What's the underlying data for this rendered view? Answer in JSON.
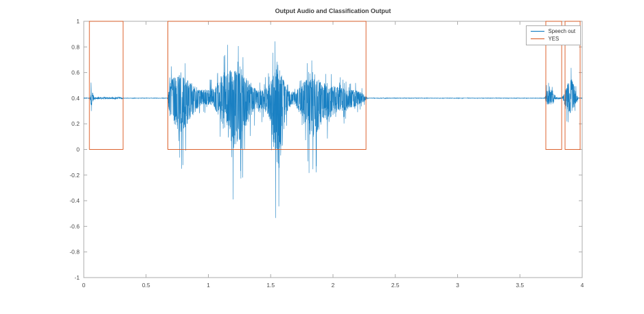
{
  "figure": {
    "background": "#ffffff"
  },
  "chart_data": {
    "type": "line",
    "title": "Output Audio and Classification Output",
    "xlabel": "",
    "ylabel": "",
    "xlim": [
      0,
      4
    ],
    "ylim": [
      -1,
      1
    ],
    "grid": false,
    "axis_color": "#ababab",
    "tick_label_color": "#4a4a4a",
    "xticks": [
      0,
      0.5,
      1,
      1.5,
      2,
      2.5,
      3,
      3.5,
      4
    ],
    "xtick_labels": [
      "0",
      "0.5",
      "1",
      "1.5",
      "2",
      "2.5",
      "3",
      "3.5",
      "4"
    ],
    "yticks": [
      -1,
      -0.8,
      -0.6,
      -0.4,
      -0.2,
      0,
      0.2,
      0.4,
      0.6,
      0.8,
      1
    ],
    "ytick_labels": [
      "-1",
      "-0.8",
      "-0.6",
      "-0.4",
      "-0.2",
      "0",
      "0.2",
      "0.4",
      "0.6",
      "0.8",
      "1"
    ],
    "legend": {
      "position": "northeast",
      "entries": [
        {
          "label": "Speech out",
          "color": "#0072BD"
        },
        {
          "label": "YES",
          "color": "#D95319"
        }
      ]
    },
    "series": [
      {
        "name": "Speech out",
        "type": "waveform",
        "color": "#0072BD",
        "baseline": 0.4,
        "envelope": [
          [
            0.0,
            0.004,
            0.004
          ],
          [
            0.05,
            0.004,
            0.004
          ],
          [
            0.06,
            0.15,
            0.17
          ],
          [
            0.07,
            0.1,
            0.09
          ],
          [
            0.082,
            0.02,
            0.02
          ],
          [
            0.1,
            0.012,
            0.012
          ],
          [
            0.3,
            0.012,
            0.012
          ],
          [
            0.315,
            0.003,
            0.003
          ],
          [
            0.67,
            0.003,
            0.003
          ],
          [
            0.69,
            0.22,
            0.3
          ],
          [
            0.72,
            0.34,
            0.45
          ],
          [
            0.76,
            0.37,
            0.62
          ],
          [
            0.8,
            0.33,
            0.58
          ],
          [
            0.85,
            0.27,
            0.4
          ],
          [
            0.9,
            0.18,
            0.22
          ],
          [
            0.94,
            0.13,
            0.11
          ],
          [
            0.99,
            0.14,
            0.12
          ],
          [
            1.04,
            0.17,
            0.15
          ],
          [
            1.09,
            0.32,
            0.35
          ],
          [
            1.14,
            0.43,
            0.6
          ],
          [
            1.2,
            0.44,
            0.88
          ],
          [
            1.25,
            0.41,
            0.8
          ],
          [
            1.3,
            0.33,
            0.55
          ],
          [
            1.345,
            0.2,
            0.3
          ],
          [
            1.39,
            0.13,
            0.18
          ],
          [
            1.44,
            0.14,
            0.22
          ],
          [
            1.49,
            0.22,
            0.35
          ],
          [
            1.53,
            0.45,
            0.9
          ],
          [
            1.56,
            0.54,
            1.3
          ],
          [
            1.59,
            0.4,
            0.95
          ],
          [
            1.62,
            0.18,
            0.3
          ],
          [
            1.66,
            0.1,
            0.12
          ],
          [
            1.7,
            0.11,
            0.13
          ],
          [
            1.74,
            0.2,
            0.3
          ],
          [
            1.78,
            0.28,
            0.45
          ],
          [
            1.83,
            0.31,
            0.7
          ],
          [
            1.88,
            0.3,
            0.6
          ],
          [
            1.93,
            0.24,
            0.35
          ],
          [
            1.97,
            0.21,
            0.4
          ],
          [
            2.01,
            0.19,
            0.28
          ],
          [
            2.06,
            0.17,
            0.24
          ],
          [
            2.11,
            0.15,
            0.2
          ],
          [
            2.16,
            0.13,
            0.16
          ],
          [
            2.21,
            0.11,
            0.12
          ],
          [
            2.25,
            0.06,
            0.06
          ],
          [
            2.28,
            0.003,
            0.003
          ],
          [
            3.7,
            0.003,
            0.003
          ],
          [
            3.715,
            0.12,
            0.12
          ],
          [
            3.74,
            0.14,
            0.12
          ],
          [
            3.765,
            0.12,
            0.11
          ],
          [
            3.785,
            0.02,
            0.02
          ],
          [
            3.8,
            0.01,
            0.01
          ],
          [
            3.84,
            0.01,
            0.01
          ],
          [
            3.858,
            0.1,
            0.1
          ],
          [
            3.885,
            0.25,
            0.22
          ],
          [
            3.91,
            0.33,
            0.28
          ],
          [
            3.935,
            0.22,
            0.18
          ],
          [
            3.955,
            0.06,
            0.06
          ],
          [
            3.97,
            0.003,
            0.003
          ],
          [
            4.0,
            0.003,
            0.003
          ]
        ]
      },
      {
        "name": "YES",
        "type": "square",
        "color": "#D95319",
        "low": 0,
        "high": 1,
        "regions": [
          [
            0.045,
            0.315
          ],
          [
            0.675,
            2.265
          ],
          [
            3.708,
            3.835
          ],
          [
            3.862,
            3.983
          ]
        ]
      }
    ]
  }
}
